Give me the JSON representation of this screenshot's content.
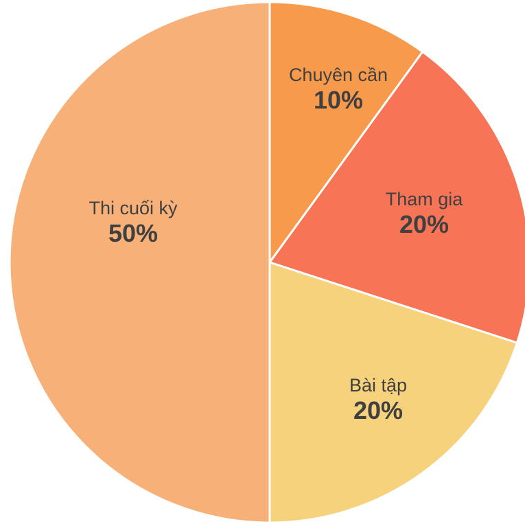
{
  "chart_data": {
    "type": "pie",
    "slices": [
      {
        "label": "Chuyên cần",
        "value": 10,
        "value_label": "10%",
        "color": "#F79A4B"
      },
      {
        "label": "Tham gia",
        "value": 20,
        "value_label": "20%",
        "color": "#F77456"
      },
      {
        "label": "Bài tập",
        "value": 20,
        "value_label": "20%",
        "color": "#F7D27D"
      },
      {
        "label": "Thi cuối kỳ",
        "value": 50,
        "value_label": "50%",
        "color": "#F7B077"
      }
    ],
    "start": "12 o'clock",
    "direction": "clockwise"
  }
}
